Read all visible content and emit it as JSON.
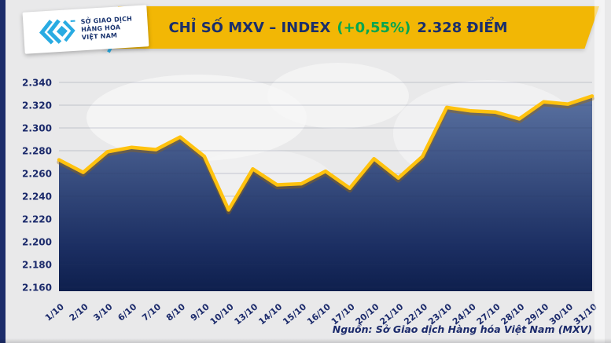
{
  "header": {
    "logo": {
      "icon": "mxv-chevrons-icon",
      "lines": [
        "SỞ GIAO DỊCH",
        "HÀNG HÓA",
        "VIỆT NAM"
      ],
      "accent_color": "#29ABE2",
      "text_color": "#1B3570"
    },
    "banner": {
      "title_prefix": "CHỈ SỐ MXV – INDEX",
      "title_change": "(+0,55%)",
      "title_value": "2.328 ĐIỂM",
      "bg_color": "#F2B705",
      "text_color": "#1A2E6B",
      "change_color": "#00A651"
    }
  },
  "chart_data": {
    "type": "area",
    "title": "CHỈ SỐ MXV – INDEX (+0,55%) 2.328 ĐIỂM",
    "x": [
      "1/10",
      "2/10",
      "3/10",
      "6/10",
      "7/10",
      "8/10",
      "9/10",
      "10/10",
      "13/10",
      "14/10",
      "15/10",
      "16/10",
      "17/10",
      "20/10",
      "21/10",
      "22/10",
      "23/10",
      "24/10",
      "27/10",
      "28/10",
      "29/10",
      "30/10",
      "31/10"
    ],
    "values": [
      2272,
      2261,
      2279,
      2283,
      2281,
      2292,
      2275,
      2228,
      2264,
      2250,
      2251,
      2262,
      2247,
      2273,
      2256,
      2275,
      2318,
      2315,
      2314,
      2308,
      2323,
      2321,
      2328
    ],
    "last_value_label": "2.328",
    "xlabel": "",
    "ylabel": "",
    "ylim": [
      2160,
      2340
    ],
    "ytick_step": 20,
    "ytick_labels": [
      "2.160",
      "2.180",
      "2.200",
      "2.220",
      "2.240",
      "2.260",
      "2.280",
      "2.300",
      "2.320",
      "2.340"
    ],
    "grid": "horizontal",
    "legend": "none",
    "line_color": "#FFC20E",
    "line_shadow_color": "rgba(160,105,0,0.40)",
    "fill_top_color": "#5F77A6",
    "fill_mid_color": "#1C2F63",
    "fill_bottom_color": "#0E1F4D",
    "gridline_color": "rgba(40,55,95,0.22)",
    "label_color": "#1B2A6B"
  },
  "footer": {
    "source": "Nguồn: Sở Giao dịch Hàng hóa Việt Nam (MXV)"
  }
}
